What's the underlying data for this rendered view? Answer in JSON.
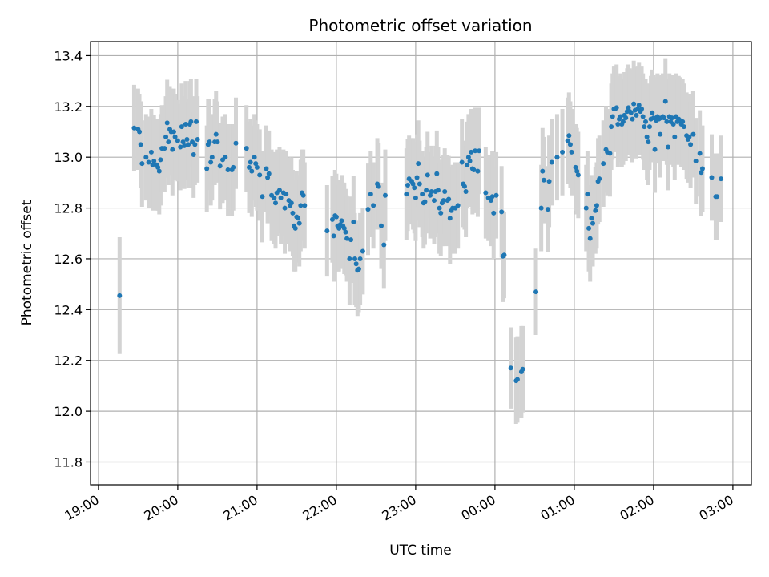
{
  "chart_data": {
    "type": "scatter",
    "title": "Photometric offset variation",
    "xlabel": "UTC time",
    "ylabel": "Photometric offset",
    "xlim": [
      "18:54",
      "03:14"
    ],
    "ylim": [
      11.71,
      13.455
    ],
    "x_tick_labels": [
      "19:00",
      "20:00",
      "21:00",
      "22:00",
      "23:00",
      "00:00",
      "01:00",
      "02:00",
      "03:00"
    ],
    "y_ticks": [
      11.8,
      12.0,
      12.2,
      12.4,
      12.6,
      12.8,
      13.0,
      13.2,
      13.4
    ],
    "grid": true,
    "marker_color": "#1f77b4",
    "errorbar_color": "#d3d3d3",
    "points": [
      [
        "19:16",
        12.455,
        0.23
      ],
      [
        "19:27",
        13.115,
        0.17
      ],
      [
        "19:30",
        13.11,
        0.16
      ],
      [
        "19:31",
        13.1,
        0.15
      ],
      [
        "19:32",
        13.05,
        0.17
      ],
      [
        "19:33",
        12.975,
        0.17
      ],
      [
        "19:36",
        13.0,
        0.17
      ],
      [
        "19:38",
        12.98,
        0.18
      ],
      [
        "19:40",
        13.02,
        0.17
      ],
      [
        "19:41",
        12.97,
        0.18
      ],
      [
        "19:42",
        12.985,
        0.18
      ],
      [
        "19:44",
        12.97,
        0.18
      ],
      [
        "19:45",
        12.96,
        0.17
      ],
      [
        "19:46",
        12.945,
        0.17
      ],
      [
        "19:47",
        12.99,
        0.18
      ],
      [
        "19:48",
        13.035,
        0.17
      ],
      [
        "19:50",
        13.035,
        0.17
      ],
      [
        "19:51",
        13.08,
        0.16
      ],
      [
        "19:52",
        13.135,
        0.17
      ],
      [
        "19:53",
        13.06,
        0.17
      ],
      [
        "19:54",
        13.11,
        0.17
      ],
      [
        "19:55",
        13.1,
        0.17
      ],
      [
        "19:56",
        13.03,
        0.18
      ],
      [
        "19:57",
        13.1,
        0.17
      ],
      [
        "19:58",
        13.08,
        0.17
      ],
      [
        "20:00",
        13.065,
        0.16
      ],
      [
        "20:02",
        13.04,
        0.17
      ],
      [
        "20:03",
        13.12,
        0.17
      ],
      [
        "20:04",
        13.06,
        0.18
      ],
      [
        "20:05",
        13.045,
        0.17
      ],
      [
        "20:06",
        13.13,
        0.17
      ],
      [
        "20:07",
        13.07,
        0.16
      ],
      [
        "20:08",
        13.05,
        0.17
      ],
      [
        "20:09",
        13.13,
        0.17
      ],
      [
        "20:10",
        13.14,
        0.17
      ],
      [
        "20:11",
        13.06,
        0.18
      ],
      [
        "20:12",
        13.01,
        0.17
      ],
      [
        "20:13",
        13.05,
        0.16
      ],
      [
        "20:14",
        13.14,
        0.17
      ],
      [
        "20:15",
        13.07,
        0.17
      ],
      [
        "20:22",
        12.955,
        0.17
      ],
      [
        "20:23",
        13.05,
        0.18
      ],
      [
        "20:24",
        13.06,
        0.17
      ],
      [
        "20:25",
        12.98,
        0.17
      ],
      [
        "20:26",
        13.0,
        0.17
      ],
      [
        "20:28",
        13.06,
        0.17
      ],
      [
        "20:29",
        13.09,
        0.17
      ],
      [
        "20:30",
        13.06,
        0.16
      ],
      [
        "20:32",
        12.965,
        0.17
      ],
      [
        "20:34",
        12.99,
        0.17
      ],
      [
        "20:36",
        13.0,
        0.17
      ],
      [
        "20:38",
        12.95,
        0.18
      ],
      [
        "20:41",
        12.95,
        0.18
      ],
      [
        "20:42",
        12.96,
        0.17
      ],
      [
        "20:44",
        13.055,
        0.18
      ],
      [
        "20:52",
        13.035,
        0.17
      ],
      [
        "20:54",
        12.96,
        0.18
      ],
      [
        "20:55",
        12.98,
        0.17
      ],
      [
        "20:56",
        12.945,
        0.18
      ],
      [
        "20:58",
        13.0,
        0.17
      ],
      [
        "20:59",
        12.975,
        0.17
      ],
      [
        "21:00",
        12.96,
        0.17
      ],
      [
        "21:02",
        12.93,
        0.18
      ],
      [
        "21:04",
        12.845,
        0.18
      ],
      [
        "21:07",
        12.955,
        0.17
      ],
      [
        "21:08",
        12.92,
        0.18
      ],
      [
        "21:09",
        12.935,
        0.17
      ],
      [
        "21:11",
        12.85,
        0.18
      ],
      [
        "21:13",
        12.84,
        0.18
      ],
      [
        "21:14",
        12.82,
        0.18
      ],
      [
        "21:15",
        12.86,
        0.17
      ],
      [
        "21:17",
        12.87,
        0.17
      ],
      [
        "21:18",
        12.84,
        0.18
      ],
      [
        "21:20",
        12.86,
        0.17
      ],
      [
        "21:21",
        12.8,
        0.18
      ],
      [
        "21:22",
        12.855,
        0.17
      ],
      [
        "21:24",
        12.83,
        0.17
      ],
      [
        "21:25",
        12.81,
        0.18
      ],
      [
        "21:26",
        12.82,
        0.18
      ],
      [
        "21:27",
        12.78,
        0.17
      ],
      [
        "21:28",
        12.73,
        0.18
      ],
      [
        "21:29",
        12.72,
        0.17
      ],
      [
        "21:30",
        12.765,
        0.18
      ],
      [
        "21:31",
        12.76,
        0.17
      ],
      [
        "21:32",
        12.74,
        0.17
      ],
      [
        "21:33",
        12.81,
        0.18
      ],
      [
        "21:34",
        12.86,
        0.17
      ],
      [
        "21:35",
        12.85,
        0.18
      ],
      [
        "21:36",
        12.81,
        0.17
      ],
      [
        "21:53",
        12.71,
        0.18
      ],
      [
        "21:57",
        12.755,
        0.17
      ],
      [
        "21:58",
        12.69,
        0.18
      ],
      [
        "21:59",
        12.77,
        0.18
      ],
      [
        "22:00",
        12.765,
        0.17
      ],
      [
        "22:01",
        12.73,
        0.18
      ],
      [
        "22:02",
        12.72,
        0.17
      ],
      [
        "22:03",
        12.735,
        0.17
      ],
      [
        "22:04",
        12.75,
        0.18
      ],
      [
        "22:05",
        12.73,
        0.17
      ],
      [
        "22:06",
        12.72,
        0.18
      ],
      [
        "22:07",
        12.705,
        0.17
      ],
      [
        "22:08",
        12.68,
        0.17
      ],
      [
        "22:10",
        12.6,
        0.18
      ],
      [
        "22:11",
        12.675,
        0.17
      ],
      [
        "22:13",
        12.745,
        0.18
      ],
      [
        "22:14",
        12.6,
        0.18
      ],
      [
        "22:15",
        12.58,
        0.17
      ],
      [
        "22:16",
        12.555,
        0.18
      ],
      [
        "22:17",
        12.56,
        0.17
      ],
      [
        "22:18",
        12.6,
        0.18
      ],
      [
        "22:20",
        12.63,
        0.17
      ],
      [
        "22:24",
        12.795,
        0.18
      ],
      [
        "22:26",
        12.855,
        0.17
      ],
      [
        "22:28",
        12.81,
        0.17
      ],
      [
        "22:31",
        12.895,
        0.18
      ],
      [
        "22:32",
        12.885,
        0.17
      ],
      [
        "22:34",
        12.73,
        0.17
      ],
      [
        "22:36",
        12.655,
        0.17
      ],
      [
        "22:37",
        12.85,
        0.18
      ],
      [
        "22:53",
        12.855,
        0.18
      ],
      [
        "22:54",
        12.89,
        0.18
      ],
      [
        "22:55",
        12.915,
        0.17
      ],
      [
        "22:57",
        12.905,
        0.17
      ],
      [
        "22:58",
        12.895,
        0.18
      ],
      [
        "22:59",
        12.88,
        0.18
      ],
      [
        "23:00",
        12.84,
        0.17
      ],
      [
        "23:01",
        12.92,
        0.17
      ],
      [
        "23:02",
        12.975,
        0.17
      ],
      [
        "23:03",
        12.895,
        0.17
      ],
      [
        "23:05",
        12.855,
        0.17
      ],
      [
        "23:06",
        12.82,
        0.18
      ],
      [
        "23:07",
        12.825,
        0.17
      ],
      [
        "23:08",
        12.87,
        0.17
      ],
      [
        "23:09",
        12.93,
        0.17
      ],
      [
        "23:11",
        12.85,
        0.17
      ],
      [
        "23:12",
        12.865,
        0.18
      ],
      [
        "23:14",
        12.83,
        0.17
      ],
      [
        "23:15",
        12.865,
        0.18
      ],
      [
        "23:16",
        12.935,
        0.17
      ],
      [
        "23:17",
        12.87,
        0.17
      ],
      [
        "23:18",
        12.8,
        0.18
      ],
      [
        "23:19",
        12.78,
        0.17
      ],
      [
        "23:20",
        12.82,
        0.17
      ],
      [
        "23:21",
        12.83,
        0.18
      ],
      [
        "23:22",
        12.865,
        0.17
      ],
      [
        "23:24",
        12.83,
        0.18
      ],
      [
        "23:25",
        12.835,
        0.17
      ],
      [
        "23:26",
        12.76,
        0.18
      ],
      [
        "23:27",
        12.79,
        0.17
      ],
      [
        "23:28",
        12.8,
        0.17
      ],
      [
        "23:30",
        12.8,
        0.18
      ],
      [
        "23:32",
        12.81,
        0.17
      ],
      [
        "23:35",
        12.98,
        0.17
      ],
      [
        "23:36",
        12.895,
        0.17
      ],
      [
        "23:37",
        12.885,
        0.17
      ],
      [
        "23:38",
        12.865,
        0.18
      ],
      [
        "23:39",
        12.97,
        0.17
      ],
      [
        "23:40",
        13.0,
        0.17
      ],
      [
        "23:41",
        12.985,
        0.18
      ],
      [
        "23:42",
        13.02,
        0.17
      ],
      [
        "23:43",
        12.955,
        0.18
      ],
      [
        "23:44",
        12.95,
        0.17
      ],
      [
        "23:45",
        13.025,
        0.17
      ],
      [
        "23:47",
        12.945,
        0.18
      ],
      [
        "23:48",
        13.025,
        0.17
      ],
      [
        "23:53",
        12.86,
        0.18
      ],
      [
        "23:55",
        12.84,
        0.17
      ],
      [
        "23:57",
        12.83,
        0.18
      ],
      [
        "23:58",
        12.845,
        0.18
      ],
      [
        "23:59",
        12.78,
        0.18
      ],
      [
        "00:01",
        12.85,
        0.17
      ],
      [
        "00:05",
        12.785,
        0.18
      ],
      [
        "00:06",
        12.61,
        0.18
      ],
      [
        "00:07",
        12.615,
        0.17
      ],
      [
        "00:12",
        12.17,
        0.16
      ],
      [
        "00:16",
        12.12,
        0.17
      ],
      [
        "00:17",
        12.125,
        0.17
      ],
      [
        "00:20",
        12.155,
        0.18
      ],
      [
        "00:21",
        12.165,
        0.17
      ],
      [
        "00:31",
        12.47,
        0.17
      ],
      [
        "00:35",
        12.8,
        0.17
      ],
      [
        "00:36",
        12.945,
        0.17
      ],
      [
        "00:37",
        12.91,
        0.17
      ],
      [
        "00:40",
        12.795,
        0.17
      ],
      [
        "00:41",
        12.905,
        0.18
      ],
      [
        "00:43",
        12.98,
        0.17
      ],
      [
        "00:47",
        13.0,
        0.17
      ],
      [
        "00:51",
        13.02,
        0.17
      ],
      [
        "00:55",
        13.065,
        0.17
      ],
      [
        "00:56",
        13.085,
        0.17
      ],
      [
        "00:57",
        13.05,
        0.17
      ],
      [
        "00:58",
        13.02,
        0.17
      ],
      [
        "01:01",
        12.96,
        0.17
      ],
      [
        "01:02",
        12.945,
        0.17
      ],
      [
        "01:03",
        12.93,
        0.17
      ],
      [
        "01:09",
        12.8,
        0.17
      ],
      [
        "01:10",
        12.855,
        0.17
      ],
      [
        "01:11",
        12.72,
        0.17
      ],
      [
        "01:12",
        12.68,
        0.17
      ],
      [
        "01:13",
        12.76,
        0.17
      ],
      [
        "01:14",
        12.74,
        0.17
      ],
      [
        "01:16",
        12.79,
        0.17
      ],
      [
        "01:17",
        12.81,
        0.17
      ],
      [
        "01:18",
        12.905,
        0.17
      ],
      [
        "01:19",
        12.915,
        0.17
      ],
      [
        "01:22",
        12.975,
        0.17
      ],
      [
        "01:24",
        13.03,
        0.17
      ],
      [
        "01:25",
        13.02,
        0.17
      ],
      [
        "01:27",
        13.015,
        0.17
      ],
      [
        "01:28",
        13.12,
        0.17
      ],
      [
        "01:29",
        13.16,
        0.17
      ],
      [
        "01:30",
        13.19,
        0.17
      ],
      [
        "01:31",
        13.19,
        0.17
      ],
      [
        "01:32",
        13.195,
        0.17
      ],
      [
        "01:33",
        13.13,
        0.17
      ],
      [
        "01:34",
        13.15,
        0.17
      ],
      [
        "01:35",
        13.16,
        0.17
      ],
      [
        "01:36",
        13.13,
        0.17
      ],
      [
        "01:37",
        13.14,
        0.17
      ],
      [
        "01:38",
        13.165,
        0.17
      ],
      [
        "01:39",
        13.155,
        0.17
      ],
      [
        "01:40",
        13.18,
        0.17
      ],
      [
        "01:41",
        13.195,
        0.17
      ],
      [
        "01:42",
        13.18,
        0.17
      ],
      [
        "01:43",
        13.175,
        0.17
      ],
      [
        "01:44",
        13.15,
        0.17
      ],
      [
        "01:45",
        13.21,
        0.17
      ],
      [
        "01:46",
        13.185,
        0.17
      ],
      [
        "01:47",
        13.165,
        0.17
      ],
      [
        "01:48",
        13.19,
        0.17
      ],
      [
        "01:49",
        13.205,
        0.17
      ],
      [
        "01:50",
        13.18,
        0.17
      ],
      [
        "01:51",
        13.19,
        0.17
      ],
      [
        "01:52",
        13.16,
        0.17
      ],
      [
        "01:53",
        13.12,
        0.17
      ],
      [
        "01:54",
        13.14,
        0.17
      ],
      [
        "01:55",
        13.08,
        0.17
      ],
      [
        "01:56",
        13.06,
        0.17
      ],
      [
        "01:57",
        13.12,
        0.17
      ],
      [
        "01:58",
        13.15,
        0.17
      ],
      [
        "01:59",
        13.175,
        0.17
      ],
      [
        "02:00",
        13.155,
        0.17
      ],
      [
        "02:01",
        13.03,
        0.17
      ],
      [
        "02:02",
        13.145,
        0.17
      ],
      [
        "02:03",
        13.16,
        0.17
      ],
      [
        "02:04",
        13.15,
        0.17
      ],
      [
        "02:05",
        13.09,
        0.17
      ],
      [
        "02:06",
        13.155,
        0.17
      ],
      [
        "02:07",
        13.16,
        0.17
      ],
      [
        "02:08",
        13.155,
        0.17
      ],
      [
        "02:09",
        13.22,
        0.17
      ],
      [
        "02:10",
        13.14,
        0.17
      ],
      [
        "02:11",
        13.04,
        0.17
      ],
      [
        "02:12",
        13.16,
        0.17
      ],
      [
        "02:13",
        13.14,
        0.17
      ],
      [
        "02:14",
        13.155,
        0.17
      ],
      [
        "02:15",
        13.13,
        0.17
      ],
      [
        "02:16",
        13.08,
        0.17
      ],
      [
        "02:17",
        13.16,
        0.17
      ],
      [
        "02:18",
        13.14,
        0.17
      ],
      [
        "02:19",
        13.15,
        0.17
      ],
      [
        "02:20",
        13.145,
        0.17
      ],
      [
        "02:21",
        13.13,
        0.17
      ],
      [
        "02:22",
        13.14,
        0.17
      ],
      [
        "02:23",
        13.12,
        0.17
      ],
      [
        "02:25",
        13.085,
        0.17
      ],
      [
        "02:26",
        13.07,
        0.17
      ],
      [
        "02:27",
        13.08,
        0.17
      ],
      [
        "02:28",
        13.05,
        0.17
      ],
      [
        "02:30",
        13.09,
        0.17
      ],
      [
        "02:32",
        12.985,
        0.17
      ],
      [
        "02:35",
        13.015,
        0.17
      ],
      [
        "02:36",
        12.94,
        0.17
      ],
      [
        "02:37",
        12.955,
        0.17
      ],
      [
        "02:44",
        12.92,
        0.17
      ],
      [
        "02:47",
        12.845,
        0.17
      ],
      [
        "02:48",
        12.845,
        0.17
      ],
      [
        "02:51",
        12.915,
        0.17
      ]
    ]
  }
}
